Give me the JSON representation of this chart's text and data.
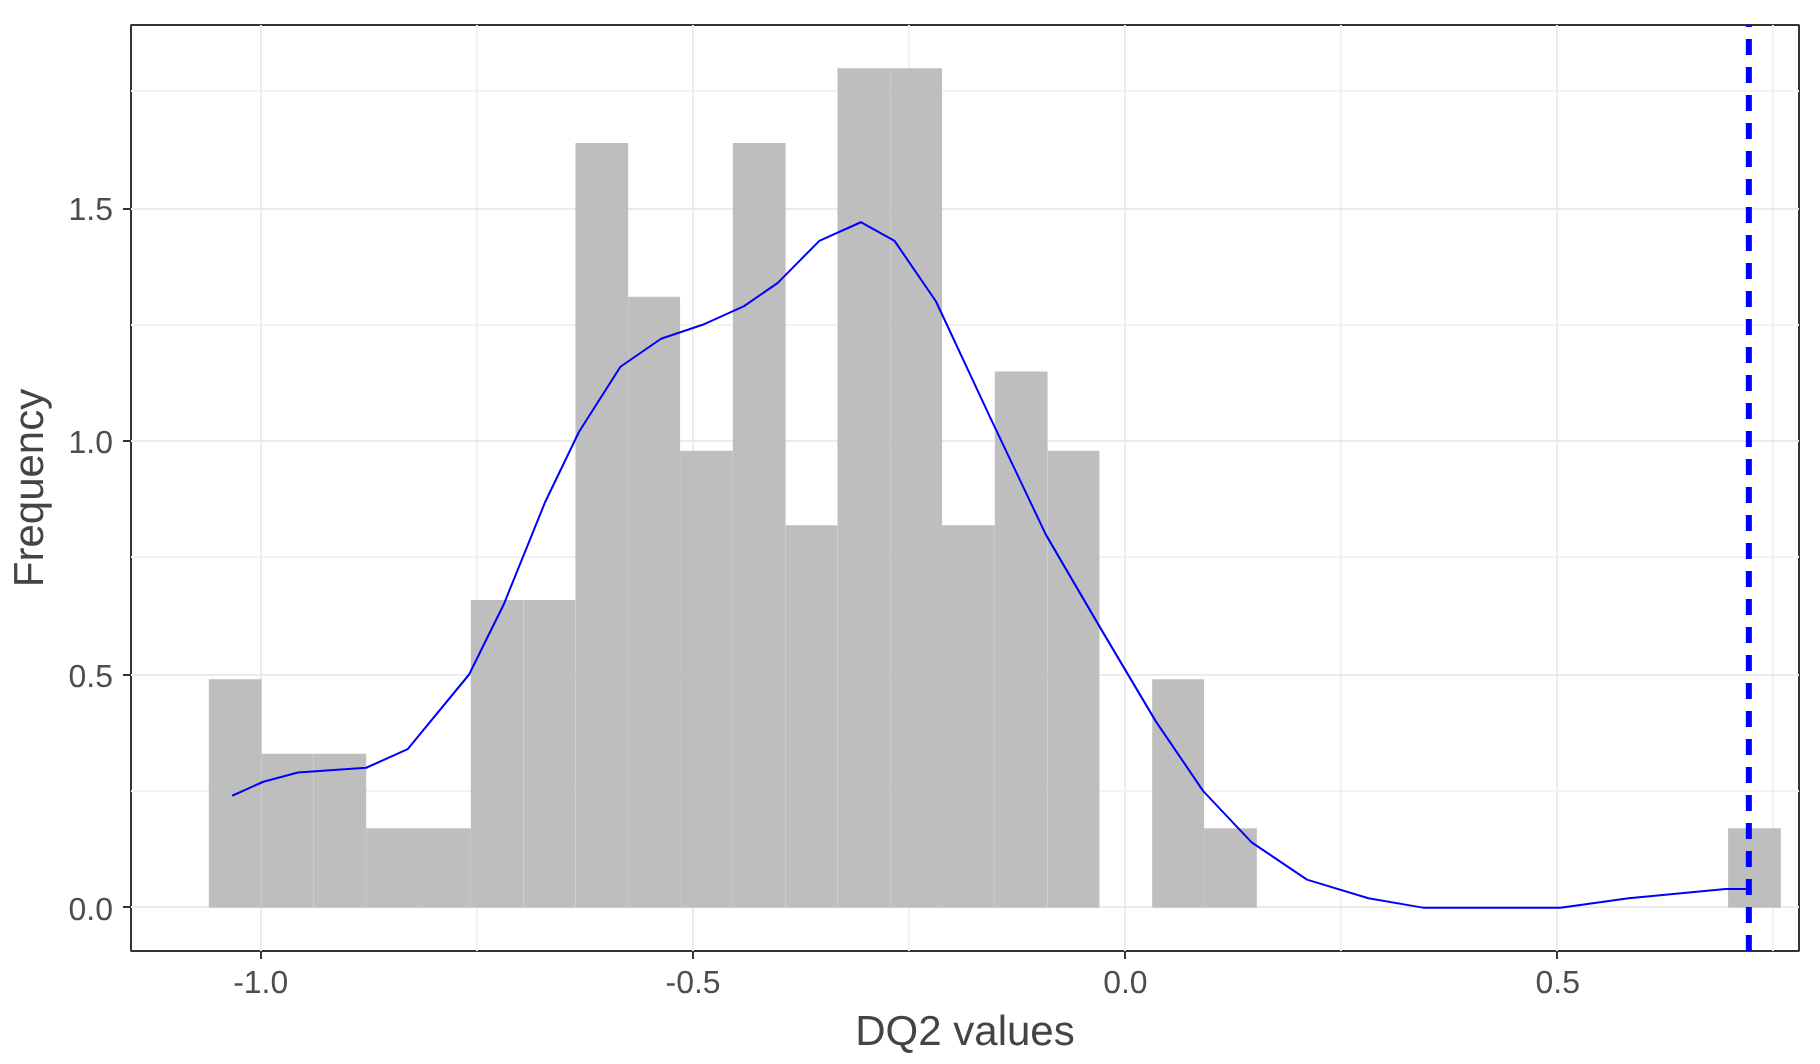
{
  "chart_data": {
    "type": "histogram",
    "xlabel": "DQ2 values",
    "ylabel": "Frequency",
    "bins": [
      -1.06,
      -0.999,
      -0.939,
      -0.878,
      -0.818,
      -0.757,
      -0.696,
      -0.636,
      -0.575,
      -0.515,
      -0.454,
      -0.393,
      -0.333,
      -0.272,
      -0.212,
      -0.151,
      -0.09,
      -0.03,
      0.031,
      0.091,
      0.152,
      0.697,
      0.758
    ],
    "values": [
      0.49,
      0.33,
      0.33,
      0.17,
      0.17,
      0.66,
      0.66,
      1.64,
      1.31,
      0.98,
      1.64,
      0.82,
      1.8,
      1.8,
      0.82,
      1.15,
      0.98,
      0,
      0.49,
      0.17,
      0,
      0.17
    ],
    "color": "#bebebe",
    "series": [
      {
        "type": "line",
        "color": "#0000ff",
        "x": [
          -1.033,
          -0.997,
          -0.957,
          -0.878,
          -0.83,
          -0.759,
          -0.719,
          -0.671,
          -0.632,
          -0.584,
          -0.537,
          -0.489,
          -0.441,
          -0.402,
          -0.354,
          -0.306,
          -0.267,
          -0.219,
          -0.156,
          -0.092,
          -0.029,
          0.035,
          0.09,
          0.146,
          0.21,
          0.281,
          0.344,
          0.503,
          0.582,
          0.694,
          0.721
        ],
        "values": [
          0.24,
          0.27,
          0.29,
          0.3,
          0.34,
          0.5,
          0.65,
          0.87,
          1.02,
          1.16,
          1.22,
          1.25,
          1.29,
          1.34,
          1.43,
          1.47,
          1.43,
          1.3,
          1.05,
          0.8,
          0.6,
          0.4,
          0.25,
          0.14,
          0.06,
          0.02,
          0,
          0,
          0.02,
          0.04,
          0.04
        ]
      }
    ],
    "ref_lines": [
      {
        "axis": "x",
        "value": 0.721,
        "color": "#0000ff",
        "line_style": "dashed"
      }
    ],
    "xlim": [
      -1.15,
      0.779
    ],
    "ylim": [
      -0.093,
      1.893
    ],
    "xticks": [
      {
        "value": -1.0,
        "label": "-1.0"
      },
      {
        "value": -0.5,
        "label": "-0.5"
      },
      {
        "value": 0.0,
        "label": "0.0"
      },
      {
        "value": 0.5,
        "label": "0.5"
      }
    ],
    "yticks": [
      {
        "value": 0.0,
        "label": "0.0"
      },
      {
        "value": 0.5,
        "label": "0.5"
      },
      {
        "value": 1.0,
        "label": "1.0"
      },
      {
        "value": 1.5,
        "label": "1.5"
      }
    ],
    "grid": true
  }
}
